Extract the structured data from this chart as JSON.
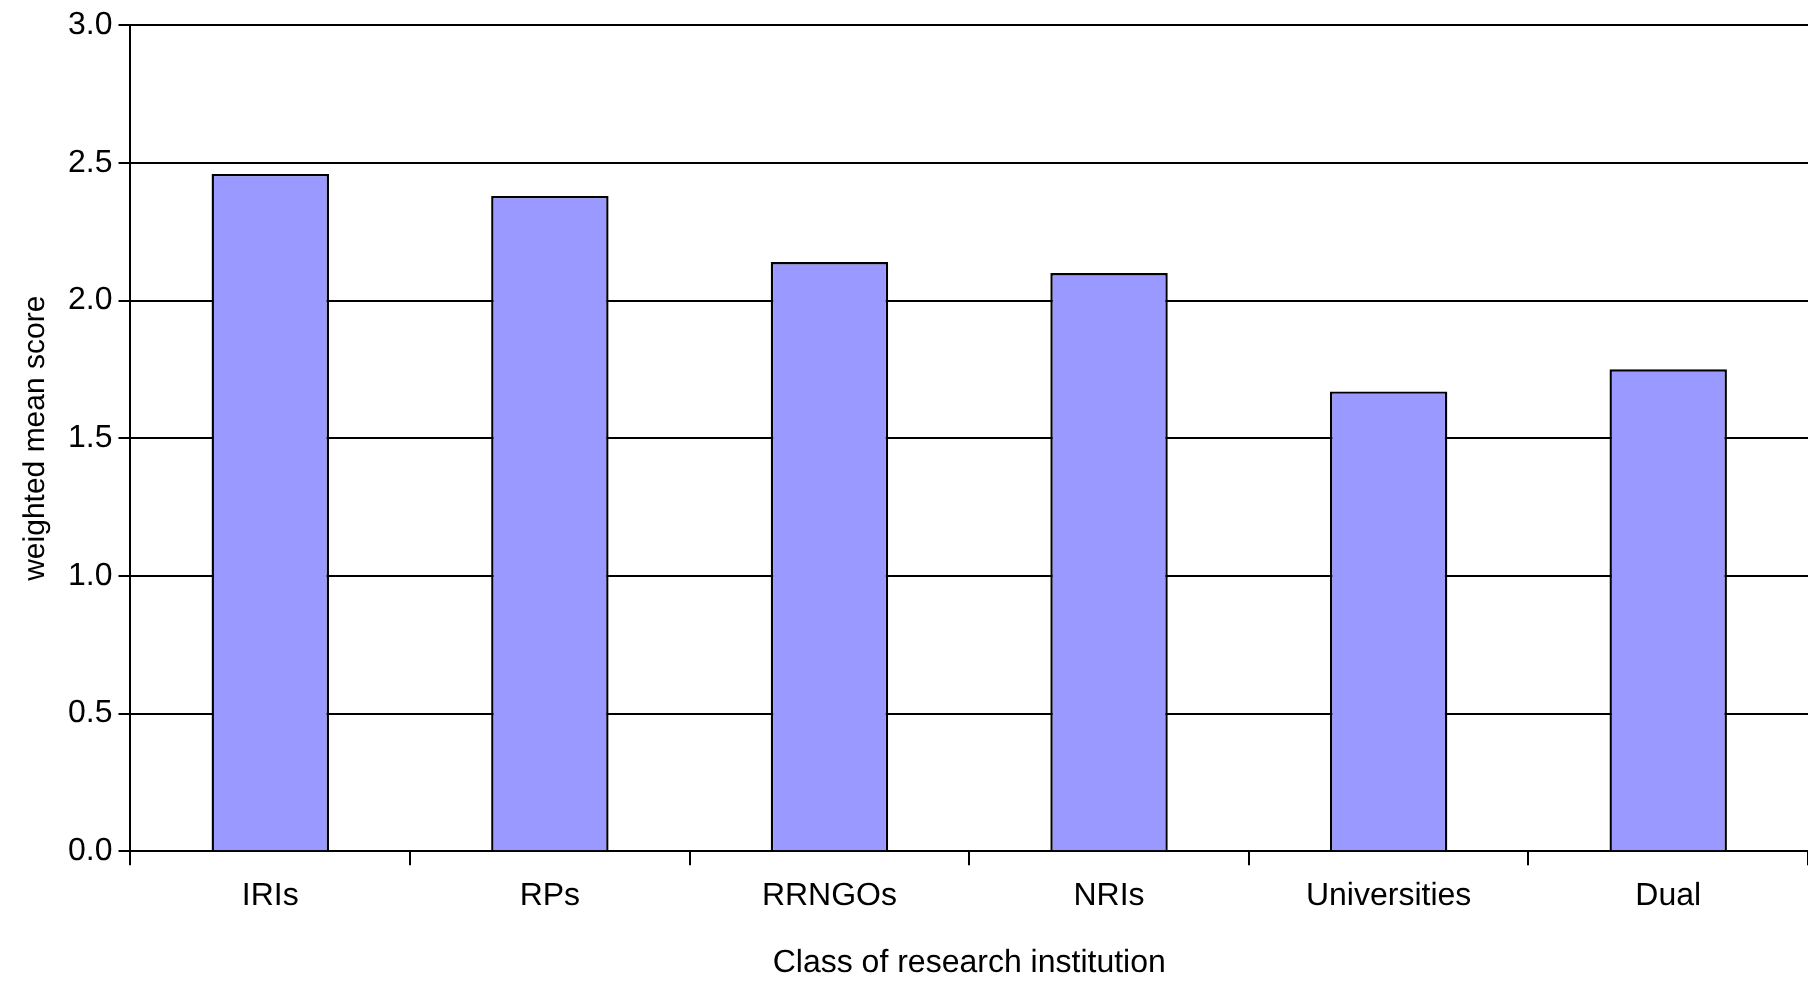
{
  "chart_data": {
    "type": "bar",
    "xlabel": "Class of research institution",
    "ylabel": "weighted mean score",
    "categories": [
      "IRIs",
      "RPs",
      "RRNGOs",
      "NRIs",
      "Universities",
      "Dual"
    ],
    "values": [
      2.46,
      2.38,
      2.14,
      2.1,
      1.67,
      1.75
    ],
    "color": "#9999ff",
    "ylim": [
      0,
      3
    ],
    "yticks": [
      {
        "value": 0,
        "label": "0.0"
      },
      {
        "value": 0.5,
        "label": "0.5"
      },
      {
        "value": 1,
        "label": "1.0"
      },
      {
        "value": 1.5,
        "label": "1.5"
      },
      {
        "value": 2,
        "label": "2.0"
      },
      {
        "value": 2.5,
        "label": "2.5"
      },
      {
        "value": 3,
        "label": "3.0"
      }
    ],
    "grid": "y",
    "legend": false
  }
}
